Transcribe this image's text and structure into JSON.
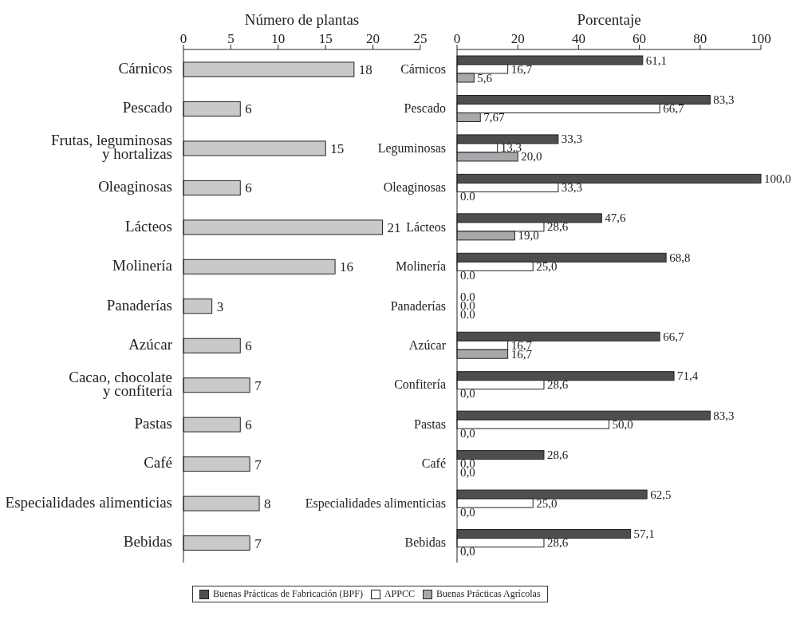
{
  "chart_data": [
    {
      "type": "bar",
      "orientation": "horizontal",
      "title": "Número de plantas",
      "categories": [
        "Cárnicos",
        "Pescado",
        "Frutas, leguminosas\ny hortalizas",
        "Oleaginosas",
        "Lácteos",
        "Molinería",
        "Panaderías",
        "Azúcar",
        "Cacao, chocolate\ny confitería",
        "Pastas",
        "Café",
        "Especialidades alimenticias",
        "Bebidas"
      ],
      "values": [
        18,
        6,
        15,
        6,
        21,
        16,
        3,
        6,
        7,
        6,
        7,
        8,
        7
      ],
      "color": "#c8c9cb",
      "xlim": [
        0,
        25
      ],
      "xticks": [
        0,
        5,
        10,
        15,
        20,
        25
      ],
      "data_labels": true,
      "grid": false,
      "legend": false
    },
    {
      "type": "bar",
      "orientation": "horizontal",
      "title": "Porcentaje",
      "categories": [
        "Cárnicos",
        "Pescado",
        "Leguminosas",
        "Oleaginosas",
        "Lácteos",
        "Molinería",
        "Panaderías",
        "Azúcar",
        "Confitería",
        "Pastas",
        "Café",
        "Especialidades alimenticias",
        "Bebidas"
      ],
      "xlim": [
        0,
        100
      ],
      "xticks": [
        0,
        20,
        40,
        60,
        80,
        100
      ],
      "grid": false,
      "legend": "bottom",
      "series": [
        {
          "name": "Buenas Prácticas de Fabricación (BPF)",
          "color": "#4d4e50",
          "values": [
            61.1,
            83.3,
            33.3,
            100,
            47.6,
            68.8,
            0,
            66.7,
            71.4,
            83.3,
            28.6,
            62.5,
            57.1
          ],
          "value_labels": [
            "61,1",
            "83,3",
            "33,3",
            "100,0",
            "47,6",
            "68,8",
            "0.0",
            "66,7",
            "71,4",
            "83,3",
            "28,6",
            "62,5",
            "57,1"
          ]
        },
        {
          "name": "APPCC",
          "color": "#ffffff",
          "values": [
            16.7,
            66.7,
            13.3,
            33.3,
            28.6,
            25.0,
            0,
            16.7,
            28.6,
            50.0,
            0,
            25.0,
            28.6
          ],
          "value_labels": [
            "16,7",
            "66,7",
            "13,3",
            "33,3",
            "28,6",
            "25,0",
            "0.0",
            "16,7",
            "28,6",
            "50,0",
            "0,0",
            "25,0",
            "28,6"
          ]
        },
        {
          "name": "Buenas Prácticas Agrícolas",
          "color": "#a7a8aa",
          "values": [
            5.6,
            7.67,
            20.0,
            0,
            19.0,
            0,
            0,
            16.7,
            0,
            0,
            0,
            0,
            0
          ],
          "value_labels": [
            "5,6",
            "7,67",
            "20,0",
            "0.0",
            "19,0",
            "0.0",
            "0.0",
            "16,7",
            "0,0",
            "0,0",
            "0,0",
            "0,0",
            "0,0"
          ]
        }
      ]
    }
  ]
}
